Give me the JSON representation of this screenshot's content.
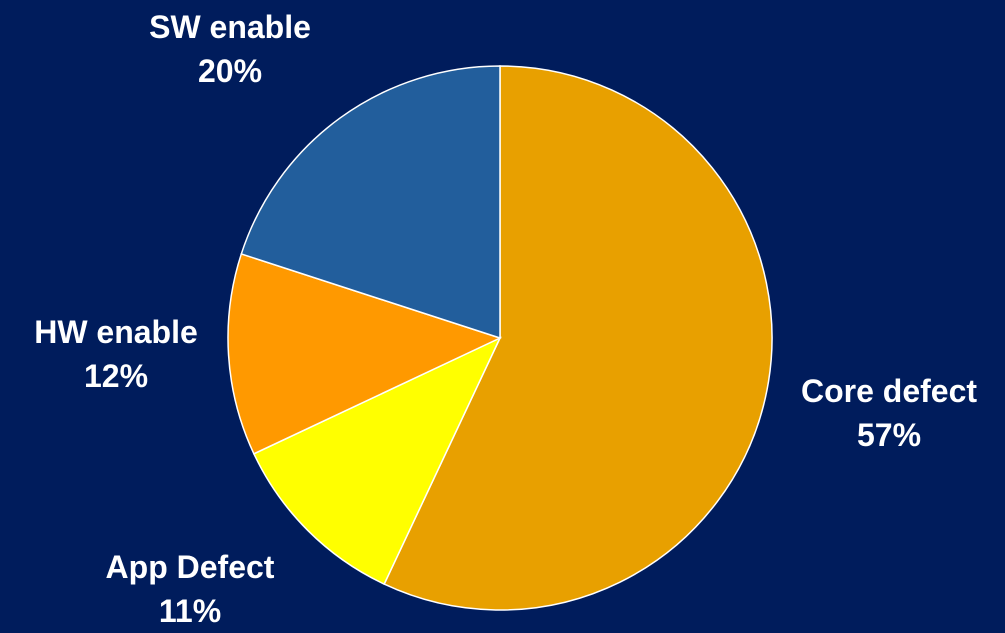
{
  "chart_data": {
    "type": "pie",
    "title": "",
    "slices": [
      {
        "label": "Core defect",
        "percent_label": "57%",
        "value": 57,
        "color": "#E8A000"
      },
      {
        "label": "App Defect",
        "percent_label": "11%",
        "value": 11,
        "color": "#FFFF00"
      },
      {
        "label": "HW enable",
        "percent_label": "12%",
        "value": 12,
        "color": "#FF9900"
      },
      {
        "label": "SW enable",
        "percent_label": "20%",
        "value": 20,
        "color": "#225E9C"
      }
    ],
    "start_angle_deg": 0,
    "direction": "clockwise",
    "legend": "none",
    "background_color": "#001C5C",
    "slice_border_color": "#FFFFFF"
  }
}
